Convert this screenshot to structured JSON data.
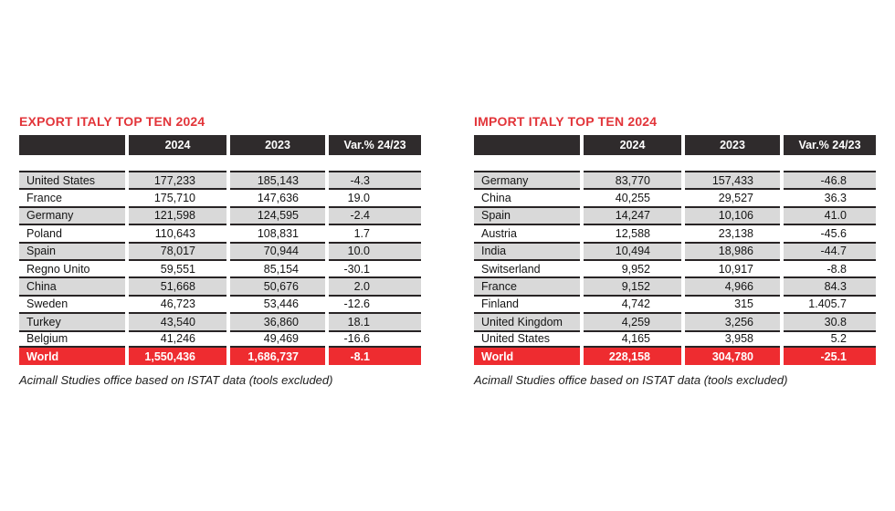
{
  "page": {
    "background": "#ffffff"
  },
  "colors": {
    "title_red": "#e2353a",
    "total_row_red": "#ee2c30",
    "header_bg": "#2f2b2c",
    "header_text": "#ffffff",
    "row_alt_gray": "#d9d9d9",
    "row_line_dark": "#282425",
    "body_text": "#141414"
  },
  "chart_data": [
    {
      "type": "table",
      "title": "EXPORT ITALY TOP TEN 2024",
      "columns": [
        "",
        "2024",
        "2023",
        "Var.% 24/23"
      ],
      "rows": [
        [
          "United States",
          "177,233",
          "185,143",
          "-4.3"
        ],
        [
          "France",
          "175,710",
          "147,636",
          "19.0"
        ],
        [
          "Germany",
          "121,598",
          "124,595",
          "-2.4"
        ],
        [
          "Poland",
          "110,643",
          "108,831",
          "1.7"
        ],
        [
          "Spain",
          "78,017",
          "70,944",
          "10.0"
        ],
        [
          "Regno Unito",
          "59,551",
          "85,154",
          "-30.1"
        ],
        [
          "China",
          "51,668",
          "50,676",
          "2.0"
        ],
        [
          "Sweden",
          "46,723",
          "53,446",
          "-12.6"
        ],
        [
          "Turkey",
          "43,540",
          "36,860",
          "18.1"
        ],
        [
          "Belgium",
          "41,246",
          "49,469",
          "-16.6"
        ]
      ],
      "total_row": [
        "World",
        "1,550,436",
        "1,686,737",
        "-8.1"
      ],
      "source_note": "Acimall Studies office based on ISTAT data (tools excluded)"
    },
    {
      "type": "table",
      "title": "IMPORT ITALY TOP TEN 2024",
      "columns": [
        "",
        "2024",
        "2023",
        "Var.% 24/23"
      ],
      "rows": [
        [
          "Germany",
          "83,770",
          "157,433",
          "-46.8"
        ],
        [
          "China",
          "40,255",
          "29,527",
          "36.3"
        ],
        [
          "Spain",
          "14,247",
          "10,106",
          "41.0"
        ],
        [
          "Austria",
          "12,588",
          "23,138",
          "-45.6"
        ],
        [
          "India",
          "10,494",
          "18,986",
          "-44.7"
        ],
        [
          "Switserland",
          "9,952",
          "10,917",
          "-8.8"
        ],
        [
          "France",
          "9,152",
          "4,966",
          "84.3"
        ],
        [
          "Finland",
          "4,742",
          "315",
          "1.405.7"
        ],
        [
          "United Kingdom",
          "4,259",
          "3,256",
          "30.8"
        ],
        [
          "United States",
          "4,165",
          "3,958",
          "5.2"
        ]
      ],
      "total_row": [
        "World",
        "228,158",
        "304,780",
        "-25.1"
      ],
      "source_note": "Acimall Studies office based on ISTAT data (tools excluded)"
    }
  ]
}
